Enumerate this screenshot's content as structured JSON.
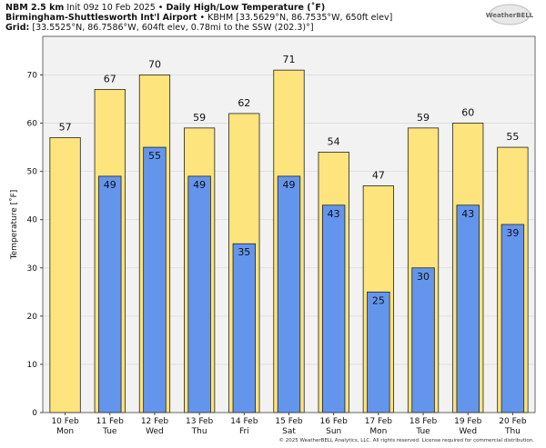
{
  "chart_data": {
    "type": "bar",
    "model": "NBM 2.5 km",
    "init": "Init 09z 10 Feb 2025 •",
    "title": "Daily High/Low Temperature (˚F)",
    "station": "Birmingham-Shuttlesworth Int'l Airport",
    "station_info": "• KBHM [33.5629°N, 86.7535°W, 650ft elev]",
    "grid_label": "Grid:",
    "grid_info": "[33.5525°N, 86.7586°W, 604ft elev, 0.78mi to the SSW (202.3)°]",
    "logo": "WeatherBELL",
    "footer": "© 2025 WeatherBELL Analytics, LLC. All rights reserved. License required for commercial distribution.",
    "y_label": "Temperature [˚F]",
    "categories": [
      "10 Feb",
      "11 Feb",
      "12 Feb",
      "13 Feb",
      "14 Feb",
      "15 Feb",
      "16 Feb",
      "17 Feb",
      "18 Feb",
      "19 Feb",
      "20 Feb"
    ],
    "weekdays": [
      "Mon",
      "Tue",
      "Wed",
      "Thu",
      "Fri",
      "Sat",
      "Sun",
      "Mon",
      "Tue",
      "Wed",
      "Thu"
    ],
    "series": [
      {
        "name": "High",
        "color": "#fee47c",
        "values": [
          57,
          67,
          70,
          59,
          62,
          71,
          54,
          47,
          59,
          60,
          55
        ]
      },
      {
        "name": "Low",
        "color": "#6495ed",
        "values": [
          null,
          49,
          55,
          49,
          35,
          49,
          43,
          25,
          30,
          43,
          39
        ]
      }
    ],
    "ylim": [
      0,
      78
    ],
    "yticks": [
      0,
      10,
      20,
      30,
      40,
      50,
      60,
      70
    ],
    "grid": true
  }
}
